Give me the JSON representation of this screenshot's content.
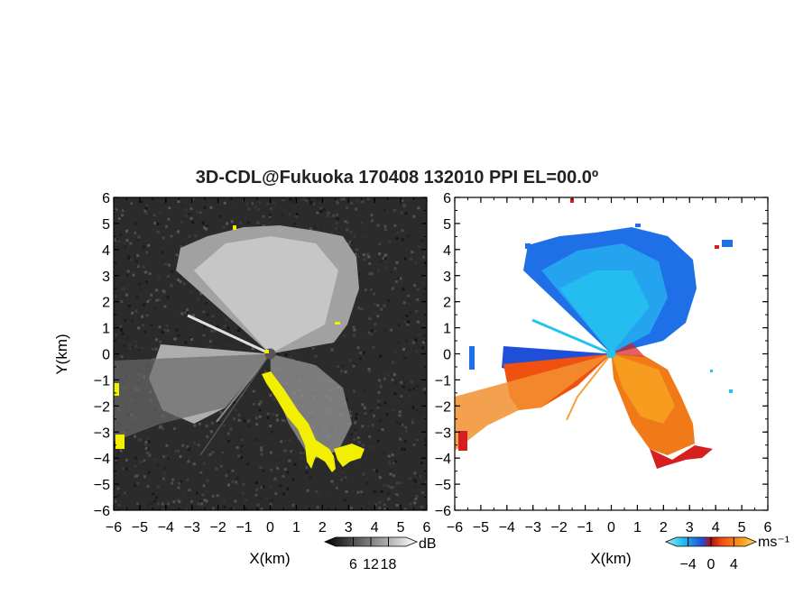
{
  "title": "3D-CDL@Fukuoka 170408 132010 PPI EL=00.0º",
  "chart_data": [
    {
      "type": "heatmap",
      "panel": "reflectivity",
      "xlabel": "X(km)",
      "ylabel": "Y(km)",
      "xlim": [
        -6,
        6
      ],
      "ylim": [
        -6,
        6
      ],
      "xticks": [
        "−6",
        "−5",
        "−4",
        "−3",
        "−2",
        "−1",
        "0",
        "1",
        "2",
        "3",
        "4",
        "5",
        "6"
      ],
      "yticks": [
        "−6",
        "−5",
        "−4",
        "−3",
        "−2",
        "−1",
        "0",
        "1",
        "2",
        "3",
        "4",
        "5",
        "6"
      ],
      "colorbar": {
        "ticks": [
          "6",
          "12",
          "18"
        ],
        "unit": "dB",
        "range": [
          0,
          24
        ]
      }
    },
    {
      "type": "heatmap",
      "panel": "doppler-velocity",
      "xlabel": "X(km)",
      "xlim": [
        -6,
        6
      ],
      "ylim": [
        -6,
        6
      ],
      "xticks": [
        "−6",
        "−5",
        "−4",
        "−3",
        "−2",
        "−1",
        "0",
        "1",
        "2",
        "3",
        "4",
        "5",
        "6"
      ],
      "yticks": [
        "−6",
        "−5",
        "−4",
        "−3",
        "−2",
        "−1",
        "0",
        "1",
        "2",
        "3",
        "4",
        "5",
        "6"
      ],
      "colorbar": {
        "ticks": [
          "−4",
          "0",
          "4"
        ],
        "unit": "ms⁻¹",
        "range": [
          -6,
          6
        ]
      }
    }
  ],
  "colors": {
    "background_dark": "#2b2b2b",
    "clutter_yellow": "#f2ef00",
    "velocity_approach_light": "#25c3ef",
    "velocity_approach": "#1f6fe6",
    "velocity_recede": "#f06010",
    "velocity_recede_dark": "#d62020"
  }
}
